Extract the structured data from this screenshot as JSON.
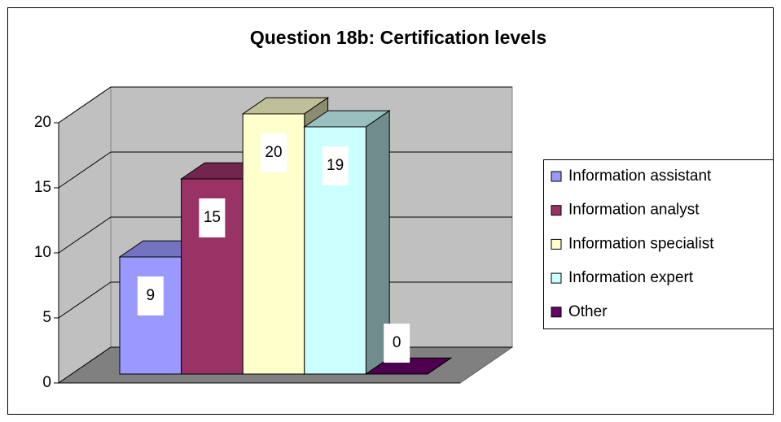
{
  "chart_data": {
    "type": "bar3d",
    "title": "Question 18b: Certification levels",
    "categories": [
      null
    ],
    "series": [
      {
        "name": "Information assistant",
        "color": "#9999ff",
        "values": [
          9
        ]
      },
      {
        "name": "Information analyst",
        "color": "#993366",
        "values": [
          15
        ]
      },
      {
        "name": "Information specialist",
        "color": "#ffffcc",
        "values": [
          20
        ]
      },
      {
        "name": "Information expert",
        "color": "#ccffff",
        "values": [
          19
        ]
      },
      {
        "name": "Other",
        "color": "#660066",
        "values": [
          0
        ]
      }
    ],
    "ylim": [
      0,
      20
    ],
    "yticks": [
      0,
      5,
      10,
      15,
      20
    ],
    "grid": true,
    "legend": "right"
  }
}
